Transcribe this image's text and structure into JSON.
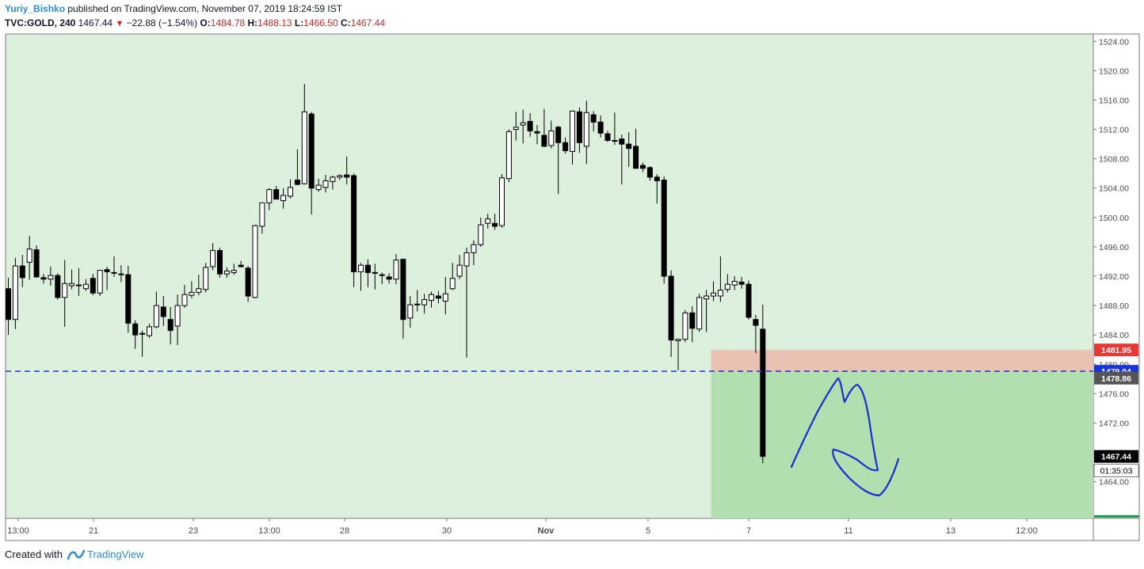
{
  "header": {
    "author": "Yuriy_Bishko",
    "published": "published on TradingView.com, November 07, 2019 18:24:59 IST",
    "symbol": "TVC:GOLD, 240",
    "last": "1467.44",
    "change": "−22.88 (−1.54%)",
    "open_label": "O:",
    "open": "1484.78",
    "high_label": "H:",
    "high": "1488.13",
    "low_label": "L:",
    "low": "1466.50",
    "close_label": "C:",
    "close": "1467.44"
  },
  "footer": {
    "created_with": "Created with",
    "brand": "TradingView"
  },
  "colors": {
    "background": "#ddf0de",
    "up_candle": "#ffffff",
    "down_candle": "#000000",
    "support_line": "#1a33e0",
    "stop_zone": "#e8c1b2",
    "target_zone": "#b2dfb0",
    "drawing": "#1a2fd0",
    "stop_label": "#e53935",
    "entry_label": "#1a33e0",
    "last_label": "#000000"
  },
  "chart_data": {
    "type": "candlestick",
    "y_range": [
      1459.0,
      1525.0
    ],
    "y_ticks": [
      1464,
      1468,
      1472,
      1476,
      1480,
      1484,
      1488,
      1492,
      1496,
      1500,
      1504,
      1508,
      1512,
      1516,
      1520,
      1524
    ],
    "x_labels": [
      "13:00",
      "21",
      "23",
      "13:00",
      "28",
      "30",
      "Nov",
      "5",
      "7",
      "11",
      "13",
      "12:00"
    ],
    "candles": [
      {
        "o": 1490.3,
        "h": 1491.8,
        "l": 1484.0,
        "c": 1486.1
      },
      {
        "o": 1486.1,
        "h": 1494.5,
        "l": 1484.8,
        "c": 1493.4
      },
      {
        "o": 1493.4,
        "h": 1494.9,
        "l": 1490.5,
        "c": 1491.8
      },
      {
        "o": 1493.9,
        "h": 1497.5,
        "l": 1491.5,
        "c": 1495.7
      },
      {
        "o": 1495.6,
        "h": 1496.2,
        "l": 1491.8,
        "c": 1491.9
      },
      {
        "o": 1491.8,
        "h": 1492.3,
        "l": 1491.0,
        "c": 1491.6
      },
      {
        "o": 1491.6,
        "h": 1493.3,
        "l": 1490.7,
        "c": 1492.1
      },
      {
        "o": 1492.1,
        "h": 1492.4,
        "l": 1488.8,
        "c": 1489.1
      },
      {
        "o": 1489.1,
        "h": 1494.2,
        "l": 1485.1,
        "c": 1491.0
      },
      {
        "o": 1490.7,
        "h": 1492.9,
        "l": 1490.2,
        "c": 1491.0
      },
      {
        "o": 1490.8,
        "h": 1493.1,
        "l": 1489.3,
        "c": 1490.8
      },
      {
        "o": 1490.3,
        "h": 1491.6,
        "l": 1490.0,
        "c": 1490.9
      },
      {
        "o": 1491.7,
        "h": 1492.3,
        "l": 1489.4,
        "c": 1489.7
      },
      {
        "o": 1489.7,
        "h": 1492.4,
        "l": 1489.3,
        "c": 1492.8
      },
      {
        "o": 1492.9,
        "h": 1493.3,
        "l": 1490.1,
        "c": 1492.6
      },
      {
        "o": 1492.5,
        "h": 1494.7,
        "l": 1491.9,
        "c": 1492.5
      },
      {
        "o": 1492.3,
        "h": 1493.5,
        "l": 1491.2,
        "c": 1492.3
      },
      {
        "o": 1492.2,
        "h": 1493.4,
        "l": 1484.3,
        "c": 1485.6
      },
      {
        "o": 1485.5,
        "h": 1486.0,
        "l": 1482.1,
        "c": 1484.0
      },
      {
        "o": 1484.2,
        "h": 1484.6,
        "l": 1481.0,
        "c": 1484.1
      },
      {
        "o": 1483.9,
        "h": 1485.5,
        "l": 1483.6,
        "c": 1485.1
      },
      {
        "o": 1485.1,
        "h": 1489.9,
        "l": 1484.9,
        "c": 1488.0
      },
      {
        "o": 1487.8,
        "h": 1489.3,
        "l": 1485.2,
        "c": 1486.5
      },
      {
        "o": 1486.1,
        "h": 1487.8,
        "l": 1482.7,
        "c": 1484.6
      },
      {
        "o": 1485.2,
        "h": 1489.5,
        "l": 1482.6,
        "c": 1488.0
      },
      {
        "o": 1488.0,
        "h": 1490.8,
        "l": 1487.7,
        "c": 1489.5
      },
      {
        "o": 1489.4,
        "h": 1491.3,
        "l": 1489.0,
        "c": 1489.8
      },
      {
        "o": 1489.8,
        "h": 1492.2,
        "l": 1489.4,
        "c": 1490.3
      },
      {
        "o": 1490.2,
        "h": 1493.8,
        "l": 1489.8,
        "c": 1493.2
      },
      {
        "o": 1493.3,
        "h": 1496.5,
        "l": 1492.8,
        "c": 1495.5
      },
      {
        "o": 1495.5,
        "h": 1495.9,
        "l": 1491.8,
        "c": 1492.3
      },
      {
        "o": 1492.3,
        "h": 1493.2,
        "l": 1491.8,
        "c": 1492.7
      },
      {
        "o": 1492.5,
        "h": 1493.7,
        "l": 1492.2,
        "c": 1492.8
      },
      {
        "o": 1493.5,
        "h": 1494.1,
        "l": 1493.2,
        "c": 1493.3
      },
      {
        "o": 1493.1,
        "h": 1493.4,
        "l": 1488.5,
        "c": 1489.3
      },
      {
        "o": 1489.1,
        "h": 1499.0,
        "l": 1489.0,
        "c": 1498.9
      },
      {
        "o": 1498.8,
        "h": 1502.0,
        "l": 1497.8,
        "c": 1502.0
      },
      {
        "o": 1502.0,
        "h": 1504.0,
        "l": 1501.0,
        "c": 1503.8
      },
      {
        "o": 1503.8,
        "h": 1504.3,
        "l": 1502.5,
        "c": 1502.5
      },
      {
        "o": 1502.3,
        "h": 1504.0,
        "l": 1501.2,
        "c": 1503.0
      },
      {
        "o": 1502.9,
        "h": 1505.2,
        "l": 1502.6,
        "c": 1504.1
      },
      {
        "o": 1505.1,
        "h": 1509.3,
        "l": 1504.4,
        "c": 1504.5
      },
      {
        "o": 1504.6,
        "h": 1518.2,
        "l": 1504.5,
        "c": 1514.4
      },
      {
        "o": 1514.1,
        "h": 1514.4,
        "l": 1500.4,
        "c": 1504.0
      },
      {
        "o": 1503.8,
        "h": 1505.3,
        "l": 1503.5,
        "c": 1504.4
      },
      {
        "o": 1504.1,
        "h": 1505.8,
        "l": 1503.4,
        "c": 1505.0
      },
      {
        "o": 1504.9,
        "h": 1505.7,
        "l": 1503.8,
        "c": 1505.5
      },
      {
        "o": 1505.5,
        "h": 1505.9,
        "l": 1505.1,
        "c": 1505.7
      },
      {
        "o": 1505.8,
        "h": 1508.3,
        "l": 1504.5,
        "c": 1505.5
      },
      {
        "o": 1505.7,
        "h": 1506.0,
        "l": 1490.5,
        "c": 1492.6
      },
      {
        "o": 1492.6,
        "h": 1493.8,
        "l": 1490.0,
        "c": 1493.5
      },
      {
        "o": 1493.5,
        "h": 1494.3,
        "l": 1490.5,
        "c": 1492.5
      },
      {
        "o": 1492.5,
        "h": 1493.7,
        "l": 1490.2,
        "c": 1492.4
      },
      {
        "o": 1492.1,
        "h": 1492.5,
        "l": 1490.9,
        "c": 1492.2
      },
      {
        "o": 1491.9,
        "h": 1492.4,
        "l": 1491.0,
        "c": 1491.6
      },
      {
        "o": 1491.6,
        "h": 1495.0,
        "l": 1490.9,
        "c": 1494.2
      },
      {
        "o": 1494.3,
        "h": 1494.4,
        "l": 1483.5,
        "c": 1486.1
      },
      {
        "o": 1486.3,
        "h": 1489.3,
        "l": 1485.0,
        "c": 1488.1
      },
      {
        "o": 1488.2,
        "h": 1490.1,
        "l": 1487.2,
        "c": 1488.2
      },
      {
        "o": 1488.1,
        "h": 1489.6,
        "l": 1486.9,
        "c": 1488.8
      },
      {
        "o": 1488.7,
        "h": 1489.9,
        "l": 1487.7,
        "c": 1489.5
      },
      {
        "o": 1489.3,
        "h": 1490.0,
        "l": 1488.3,
        "c": 1489.0
      },
      {
        "o": 1488.6,
        "h": 1491.9,
        "l": 1486.8,
        "c": 1489.6
      },
      {
        "o": 1490.3,
        "h": 1493.8,
        "l": 1490.1,
        "c": 1491.7
      },
      {
        "o": 1492.0,
        "h": 1494.9,
        "l": 1491.6,
        "c": 1493.5
      },
      {
        "o": 1493.4,
        "h": 1495.9,
        "l": 1480.9,
        "c": 1495.2
      },
      {
        "o": 1495.2,
        "h": 1496.9,
        "l": 1493.5,
        "c": 1496.3
      },
      {
        "o": 1496.3,
        "h": 1500.0,
        "l": 1496.0,
        "c": 1499.0
      },
      {
        "o": 1499.2,
        "h": 1500.5,
        "l": 1498.5,
        "c": 1499.8
      },
      {
        "o": 1499.2,
        "h": 1500.5,
        "l": 1498.3,
        "c": 1498.8
      },
      {
        "o": 1498.9,
        "h": 1505.9,
        "l": 1498.6,
        "c": 1505.4
      },
      {
        "o": 1505.3,
        "h": 1512.0,
        "l": 1504.8,
        "c": 1511.7
      },
      {
        "o": 1512.0,
        "h": 1514.4,
        "l": 1510.5,
        "c": 1512.3
      },
      {
        "o": 1512.6,
        "h": 1514.7,
        "l": 1510.1,
        "c": 1512.9
      },
      {
        "o": 1513.1,
        "h": 1514.2,
        "l": 1511.0,
        "c": 1511.8
      },
      {
        "o": 1511.7,
        "h": 1512.6,
        "l": 1510.0,
        "c": 1511.5
      },
      {
        "o": 1511.2,
        "h": 1514.8,
        "l": 1509.6,
        "c": 1509.7
      },
      {
        "o": 1509.8,
        "h": 1513.2,
        "l": 1509.4,
        "c": 1511.8
      },
      {
        "o": 1512.3,
        "h": 1512.5,
        "l": 1503.2,
        "c": 1510.2
      },
      {
        "o": 1510.2,
        "h": 1510.9,
        "l": 1508.7,
        "c": 1509.1
      },
      {
        "o": 1509.0,
        "h": 1514.6,
        "l": 1507.2,
        "c": 1514.5
      },
      {
        "o": 1514.4,
        "h": 1515.0,
        "l": 1508.8,
        "c": 1510.2
      },
      {
        "o": 1509.7,
        "h": 1515.9,
        "l": 1507.3,
        "c": 1514.3
      },
      {
        "o": 1514.0,
        "h": 1514.5,
        "l": 1511.7,
        "c": 1513.0
      },
      {
        "o": 1513.0,
        "h": 1513.9,
        "l": 1510.9,
        "c": 1511.5
      },
      {
        "o": 1511.4,
        "h": 1511.8,
        "l": 1510.3,
        "c": 1510.5
      },
      {
        "o": 1510.5,
        "h": 1514.3,
        "l": 1509.9,
        "c": 1510.4
      },
      {
        "o": 1510.7,
        "h": 1511.3,
        "l": 1504.5,
        "c": 1510.0
      },
      {
        "o": 1510.0,
        "h": 1511.6,
        "l": 1506.9,
        "c": 1509.4
      },
      {
        "o": 1509.7,
        "h": 1512.1,
        "l": 1506.9,
        "c": 1506.7
      },
      {
        "o": 1507.1,
        "h": 1507.5,
        "l": 1506.2,
        "c": 1506.7
      },
      {
        "o": 1506.8,
        "h": 1507.0,
        "l": 1505.0,
        "c": 1505.5
      },
      {
        "o": 1505.5,
        "h": 1505.9,
        "l": 1501.9,
        "c": 1505.0
      },
      {
        "o": 1505.1,
        "h": 1505.6,
        "l": 1491.0,
        "c": 1492.0
      },
      {
        "o": 1492.0,
        "h": 1492.8,
        "l": 1481.0,
        "c": 1483.3
      },
      {
        "o": 1483.2,
        "h": 1483.5,
        "l": 1479.2,
        "c": 1483.4
      },
      {
        "o": 1483.4,
        "h": 1487.4,
        "l": 1483.0,
        "c": 1487.0
      },
      {
        "o": 1487.0,
        "h": 1487.9,
        "l": 1483.0,
        "c": 1484.9
      },
      {
        "o": 1484.8,
        "h": 1489.6,
        "l": 1484.4,
        "c": 1489.1
      },
      {
        "o": 1488.9,
        "h": 1490.1,
        "l": 1484.4,
        "c": 1489.3
      },
      {
        "o": 1489.3,
        "h": 1491.3,
        "l": 1488.6,
        "c": 1489.7
      },
      {
        "o": 1489.3,
        "h": 1494.7,
        "l": 1488.5,
        "c": 1490.1
      },
      {
        "o": 1490.2,
        "h": 1492.3,
        "l": 1489.8,
        "c": 1490.9
      },
      {
        "o": 1490.8,
        "h": 1492.0,
        "l": 1490.1,
        "c": 1491.3
      },
      {
        "o": 1491.2,
        "h": 1491.9,
        "l": 1490.3,
        "c": 1490.9
      },
      {
        "o": 1490.9,
        "h": 1491.4,
        "l": 1486.1,
        "c": 1486.4
      },
      {
        "o": 1486.1,
        "h": 1486.7,
        "l": 1481.5,
        "c": 1485.3
      },
      {
        "o": 1484.78,
        "h": 1488.13,
        "l": 1466.5,
        "c": 1467.44
      }
    ],
    "support_level": 1479.04,
    "position": {
      "type": "short",
      "entry": 1479.04,
      "stop": 1481.95,
      "target": 1463.0,
      "start_index": 100
    },
    "price_labels": {
      "stop": "1481.95",
      "entry": "1479.04",
      "other": "1478.86",
      "last": "1467.44",
      "countdown": "01:35:03"
    }
  }
}
